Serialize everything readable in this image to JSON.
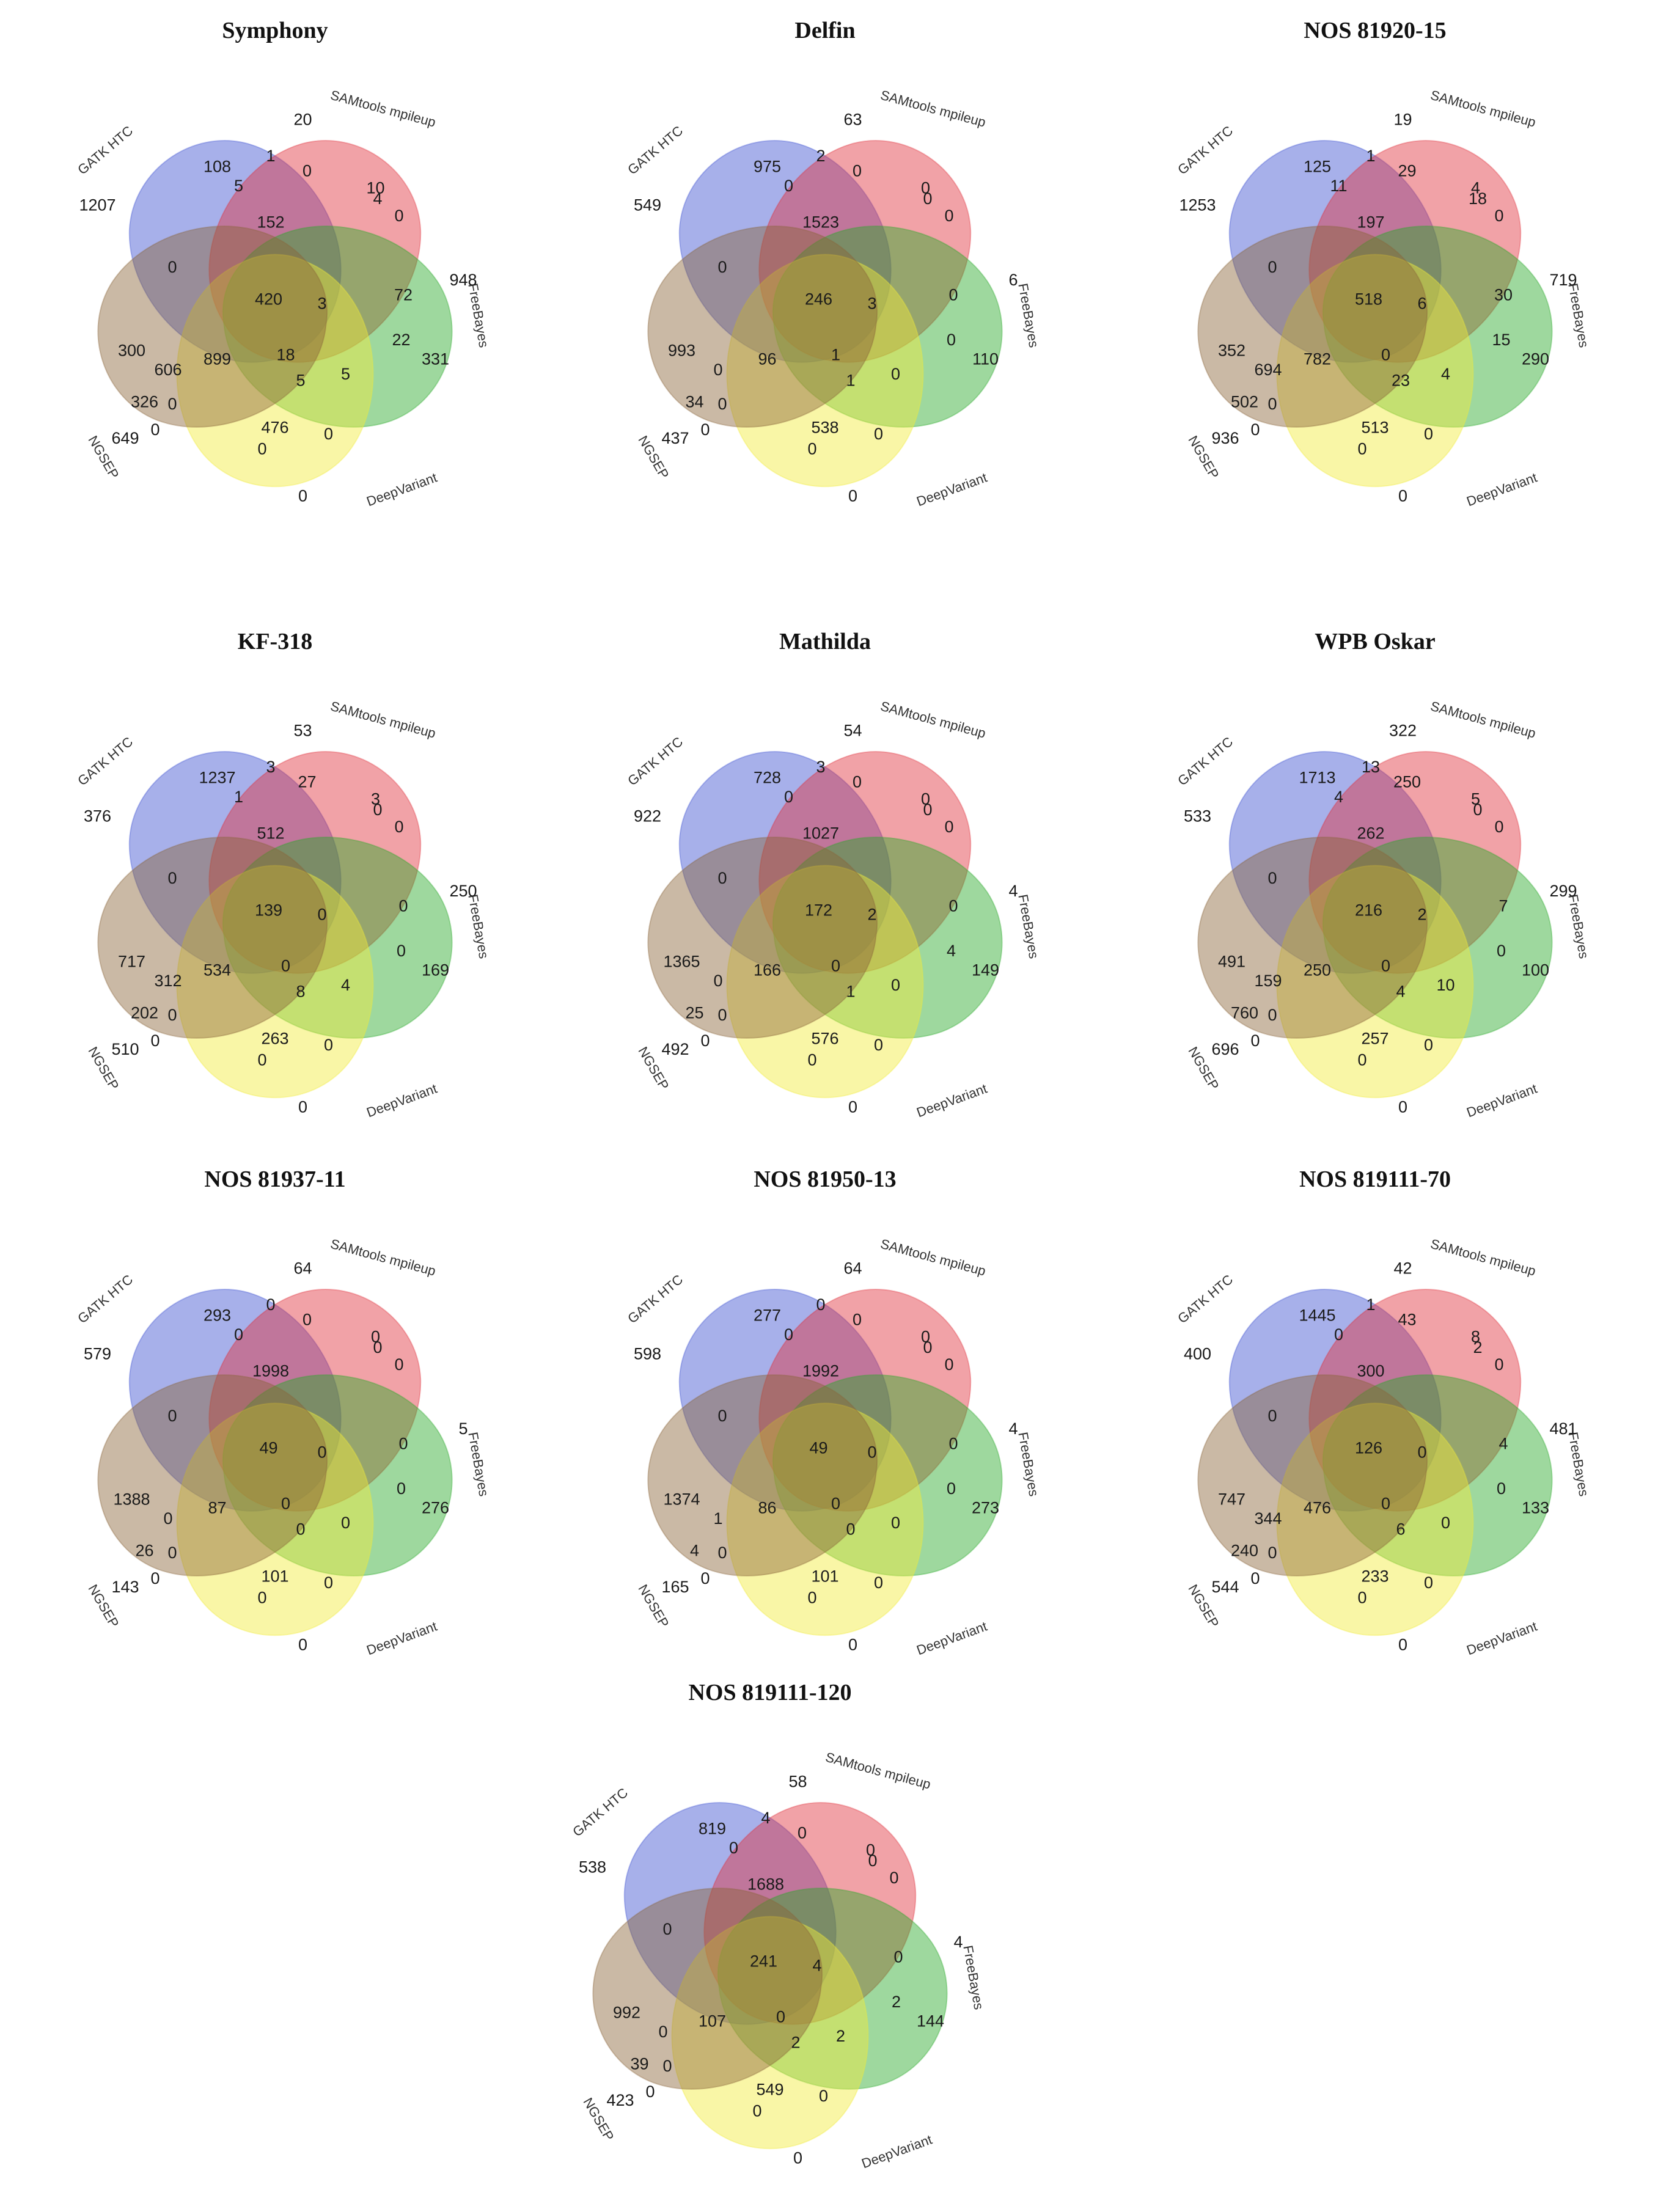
{
  "set_labels": [
    "GATK HTC",
    "SAMtools mpileup",
    "FreeBayes",
    "DeepVariant",
    "NGSEP"
  ],
  "set_colors": [
    "#3b4fd0",
    "#e0303c",
    "#28a828",
    "#f2ea3a",
    "#8a6438"
  ],
  "diagrams": [
    {
      "title": "Symphony",
      "values": [
        1207,
        20,
        948,
        0,
        649,
        108,
        10,
        22,
        476,
        300,
        1,
        4,
        5,
        0,
        606,
        5,
        72,
        5,
        0,
        326,
        152,
        3,
        18,
        899,
        0,
        0,
        0,
        0,
        0,
        331,
        420
      ]
    },
    {
      "title": "Delfin",
      "values": [
        549,
        63,
        6,
        0,
        437,
        975,
        0,
        0,
        538,
        993,
        2,
        0,
        0,
        0,
        0,
        0,
        0,
        1,
        0,
        34,
        1523,
        3,
        1,
        96,
        0,
        0,
        0,
        0,
        0,
        110,
        246
      ]
    },
    {
      "title": "NOS 81920-15",
      "values": [
        1253,
        19,
        719,
        0,
        936,
        125,
        4,
        15,
        513,
        352,
        1,
        18,
        4,
        0,
        694,
        11,
        30,
        23,
        0,
        502,
        197,
        6,
        0,
        782,
        0,
        29,
        0,
        0,
        0,
        290,
        518
      ]
    },
    {
      "title": "KF-318",
      "values": [
        376,
        53,
        250,
        0,
        510,
        1237,
        3,
        0,
        263,
        717,
        3,
        0,
        4,
        0,
        312,
        1,
        0,
        8,
        0,
        202,
        512,
        0,
        0,
        534,
        0,
        27,
        0,
        0,
        0,
        169,
        139
      ]
    },
    {
      "title": "Mathilda",
      "values": [
        922,
        54,
        4,
        0,
        492,
        728,
        0,
        4,
        576,
        1365,
        3,
        0,
        0,
        0,
        0,
        0,
        0,
        1,
        0,
        25,
        1027,
        2,
        0,
        166,
        0,
        0,
        0,
        0,
        0,
        149,
        172
      ]
    },
    {
      "title": "WPB Oskar",
      "values": [
        533,
        322,
        299,
        0,
        696,
        1713,
        5,
        0,
        257,
        491,
        13,
        0,
        10,
        0,
        159,
        4,
        7,
        4,
        0,
        760,
        262,
        2,
        0,
        250,
        0,
        250,
        0,
        0,
        0,
        100,
        216
      ]
    },
    {
      "title": "NOS 81937-11",
      "values": [
        579,
        64,
        5,
        0,
        143,
        293,
        0,
        0,
        101,
        1388,
        0,
        0,
        0,
        0,
        0,
        0,
        0,
        0,
        0,
        26,
        1998,
        0,
        0,
        87,
        0,
        0,
        0,
        0,
        0,
        276,
        49
      ]
    },
    {
      "title": "NOS 81950-13",
      "values": [
        598,
        64,
        4,
        0,
        165,
        277,
        0,
        0,
        101,
        1374,
        0,
        0,
        0,
        0,
        1,
        0,
        0,
        0,
        0,
        4,
        1992,
        0,
        0,
        86,
        0,
        0,
        0,
        0,
        0,
        273,
        49
      ]
    },
    {
      "title": "NOS 819111-70",
      "values": [
        400,
        42,
        481,
        0,
        544,
        1445,
        8,
        0,
        233,
        747,
        1,
        2,
        0,
        0,
        344,
        0,
        4,
        6,
        0,
        240,
        300,
        0,
        0,
        476,
        0,
        43,
        0,
        0,
        0,
        133,
        126
      ]
    },
    {
      "title": "NOS 819111-120",
      "values": [
        538,
        58,
        4,
        0,
        423,
        819,
        0,
        2,
        549,
        992,
        4,
        0,
        2,
        0,
        0,
        0,
        0,
        2,
        0,
        39,
        1688,
        4,
        0,
        107,
        0,
        0,
        0,
        0,
        0,
        144,
        241
      ]
    }
  ]
}
